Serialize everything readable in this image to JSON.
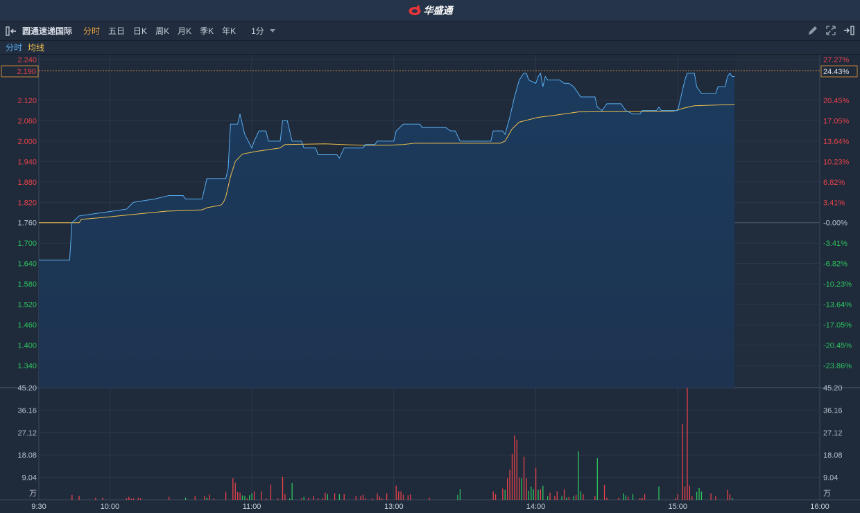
{
  "app": {
    "brand": "华盛通",
    "brand_color": "#e8343a"
  },
  "toolbar": {
    "stock_name": "圆通速递国际",
    "tabs": [
      {
        "label": "分时",
        "active": true
      },
      {
        "label": "五日"
      },
      {
        "label": "日K"
      },
      {
        "label": "周K"
      },
      {
        "label": "月K"
      },
      {
        "label": "季K"
      },
      {
        "label": "年K"
      }
    ],
    "period": "1分",
    "icons": [
      "collapse-left-icon",
      "pencil-icon",
      "fullscreen-icon",
      "expand-right-icon"
    ]
  },
  "legend": {
    "price_label": "分时",
    "avg_label": "均线",
    "price_color": "#5aaef0",
    "avg_color": "#f3c14b"
  },
  "colors": {
    "up": "#e8434a",
    "down": "#2ec55e",
    "flat": "#b8c0cc"
  },
  "chart_data": {
    "type": "line",
    "prev_close": 1.76,
    "current_price": "2.190",
    "current_change": "24.43%",
    "ylim": [
      1.34,
      2.24
    ],
    "y_ticks_left": [
      "2.240",
      "2.120",
      "2.060",
      "2.000",
      "1.940",
      "1.880",
      "1.820",
      "1.760",
      "1.700",
      "1.640",
      "1.580",
      "1.520",
      "1.460",
      "1.400",
      "1.340"
    ],
    "y_ticks_right": [
      "27.27%",
      "20.45%",
      "17.05%",
      "13.64%",
      "10.23%",
      "6.82%",
      "3.41%",
      "-0.00%",
      "-3.41%",
      "-6.82%",
      "-10.23%",
      "-13.64%",
      "-17.05%",
      "-20.45%",
      "-23.86%"
    ],
    "x_ticks": [
      "9:30",
      "10:00",
      "11:00",
      "13:00",
      "14:00",
      "15:00",
      "16:00"
    ],
    "sessions": [
      [
        "9:30",
        "12:00"
      ],
      [
        "13:00",
        "16:00"
      ]
    ],
    "price": [
      [
        "9:30",
        1.65
      ],
      [
        "9:43",
        1.65
      ],
      [
        "9:44",
        1.76
      ],
      [
        "9:47",
        1.78
      ],
      [
        "9:57",
        1.79
      ],
      [
        "10:07",
        1.8
      ],
      [
        "10:10",
        1.82
      ],
      [
        "10:19",
        1.83
      ],
      [
        "10:25",
        1.84
      ],
      [
        "10:31",
        1.84
      ],
      [
        "10:32",
        1.83
      ],
      [
        "10:39",
        1.83
      ],
      [
        "10:41",
        1.89
      ],
      [
        "10:49",
        1.89
      ],
      [
        "10:50",
        1.92
      ],
      [
        "10:51",
        2.05
      ],
      [
        "10:54",
        2.05
      ],
      [
        "10:55",
        2.08
      ],
      [
        "10:57",
        2.02
      ],
      [
        "11:00",
        1.98
      ],
      [
        "11:01",
        2.0
      ],
      [
        "11:03",
        2.03
      ],
      [
        "11:06",
        2.03
      ],
      [
        "11:07",
        2.0
      ],
      [
        "11:12",
        2.0
      ],
      [
        "11:13",
        2.06
      ],
      [
        "11:15",
        2.06
      ],
      [
        "11:17",
        2.0
      ],
      [
        "11:21",
        2.0
      ],
      [
        "11:22",
        1.98
      ],
      [
        "11:27",
        1.98
      ],
      [
        "11:28",
        1.96
      ],
      [
        "11:36",
        1.96
      ],
      [
        "11:37",
        1.95
      ],
      [
        "11:39",
        1.98
      ],
      [
        "11:47",
        1.98
      ],
      [
        "11:48",
        1.99
      ],
      [
        "11:52",
        1.99
      ],
      [
        "11:53",
        2.0
      ],
      [
        "13:00",
        2.0
      ],
      [
        "13:01",
        2.03
      ],
      [
        "13:04",
        2.05
      ],
      [
        "13:11",
        2.05
      ],
      [
        "13:12",
        2.04
      ],
      [
        "13:22",
        2.04
      ],
      [
        "13:24",
        2.03
      ],
      [
        "13:26",
        2.03
      ],
      [
        "13:28",
        2.0
      ],
      [
        "13:41",
        2.0
      ],
      [
        "13:42",
        2.03
      ],
      [
        "13:46",
        2.03
      ],
      [
        "13:47",
        2.02
      ],
      [
        "13:49",
        2.07
      ],
      [
        "13:51",
        2.13
      ],
      [
        "13:53",
        2.18
      ],
      [
        "13:55",
        2.2
      ],
      [
        "13:56",
        2.2
      ],
      [
        "13:57",
        2.18
      ],
      [
        "14:00",
        2.17
      ],
      [
        "14:01",
        2.19
      ],
      [
        "14:02",
        2.2
      ],
      [
        "14:03",
        2.16
      ],
      [
        "14:04",
        2.19
      ],
      [
        "14:05",
        2.18
      ],
      [
        "14:10",
        2.18
      ],
      [
        "14:12",
        2.17
      ],
      [
        "14:14",
        2.17
      ],
      [
        "14:16",
        2.16
      ],
      [
        "14:19",
        2.13
      ],
      [
        "14:25",
        2.13
      ],
      [
        "14:26",
        2.1
      ],
      [
        "14:28",
        2.09
      ],
      [
        "14:30",
        2.11
      ],
      [
        "14:36",
        2.11
      ],
      [
        "14:38",
        2.09
      ],
      [
        "14:41",
        2.08
      ],
      [
        "14:44",
        2.08
      ],
      [
        "14:45",
        2.09
      ],
      [
        "14:51",
        2.09
      ],
      [
        "14:52",
        2.1
      ],
      [
        "14:53",
        2.09
      ],
      [
        "15:00",
        2.09
      ],
      [
        "15:01",
        2.12
      ],
      [
        "15:03",
        2.18
      ],
      [
        "15:04",
        2.2
      ],
      [
        "15:07",
        2.2
      ],
      [
        "15:08",
        2.16
      ],
      [
        "15:10",
        2.14
      ],
      [
        "15:16",
        2.14
      ],
      [
        "15:17",
        2.16
      ],
      [
        "15:20",
        2.16
      ],
      [
        "15:21",
        2.19
      ],
      [
        "15:22",
        2.2
      ],
      [
        "15:23",
        2.19
      ],
      [
        "15:24",
        2.19
      ]
    ],
    "average": [
      [
        "9:30",
        1.76
      ],
      [
        "9:47",
        1.76
      ],
      [
        "9:48",
        1.77
      ],
      [
        "9:58",
        1.776
      ],
      [
        "10:09",
        1.784
      ],
      [
        "10:24",
        1.794
      ],
      [
        "10:39",
        1.798
      ],
      [
        "10:41",
        1.804
      ],
      [
        "10:47",
        1.812
      ],
      [
        "10:48",
        1.82
      ],
      [
        "10:49",
        1.836
      ],
      [
        "10:51",
        1.896
      ],
      [
        "10:53",
        1.94
      ],
      [
        "10:56",
        1.962
      ],
      [
        "11:02",
        1.97
      ],
      [
        "11:08",
        1.976
      ],
      [
        "11:12",
        1.98
      ],
      [
        "11:14",
        1.99
      ],
      [
        "11:31",
        1.992
      ],
      [
        "11:46",
        1.988
      ],
      [
        "11:58",
        1.988
      ],
      [
        "13:04",
        1.99
      ],
      [
        "13:09",
        1.994
      ],
      [
        "13:45",
        1.994
      ],
      [
        "13:47",
        2.0
      ],
      [
        "13:50",
        2.036
      ],
      [
        "13:53",
        2.056
      ],
      [
        "14:01",
        2.07
      ],
      [
        "14:08",
        2.076
      ],
      [
        "14:18",
        2.086
      ],
      [
        "14:58",
        2.088
      ],
      [
        "15:03",
        2.098
      ],
      [
        "15:07",
        2.104
      ],
      [
        "15:24",
        2.108
      ]
    ],
    "volume_unit": "万",
    "volume_ylim": [
      0,
      45.2
    ],
    "volume_ticks": [
      "45.20",
      "36.16",
      "27.12",
      "18.08",
      "9.04"
    ],
    "volume": [
      [
        "9:44",
        2.0,
        "up"
      ],
      [
        "9:47",
        1.6,
        "up"
      ],
      [
        "9:54",
        0.9,
        "up"
      ],
      [
        "9:57",
        0.9,
        "up"
      ],
      [
        "10:07",
        0.6,
        "up"
      ],
      [
        "10:08",
        1.2,
        "up"
      ],
      [
        "10:09",
        0.6,
        "up"
      ],
      [
        "10:10",
        0.6,
        "up"
      ],
      [
        "10:12",
        0.9,
        "up"
      ],
      [
        "10:13",
        0.6,
        "up"
      ],
      [
        "10:25",
        1.2,
        "up"
      ],
      [
        "10:32",
        0.9,
        "down"
      ],
      [
        "10:36",
        1.6,
        "up"
      ],
      [
        "10:40",
        1.6,
        "up"
      ],
      [
        "10:41",
        0.9,
        "down"
      ],
      [
        "10:42",
        2.1,
        "up"
      ],
      [
        "10:44",
        0.6,
        "up"
      ],
      [
        "10:49",
        3.2,
        "up"
      ],
      [
        "10:52",
        8.7,
        "up"
      ],
      [
        "10:53",
        6.8,
        "up"
      ],
      [
        "10:54",
        3.2,
        "up"
      ],
      [
        "10:55",
        2.9,
        "up"
      ],
      [
        "10:56",
        1.8,
        "down"
      ],
      [
        "10:57",
        1.6,
        "down"
      ],
      [
        "10:58",
        0.6,
        "up"
      ],
      [
        "10:59",
        1.9,
        "down"
      ],
      [
        "11:00",
        2.7,
        "down"
      ],
      [
        "11:01",
        3.4,
        "up"
      ],
      [
        "11:04",
        3.4,
        "up"
      ],
      [
        "11:06",
        0.6,
        "up"
      ],
      [
        "11:08",
        6.2,
        "up"
      ],
      [
        "11:11",
        0.6,
        "up"
      ],
      [
        "11:13",
        9.3,
        "up"
      ],
      [
        "11:14",
        2.3,
        "up"
      ],
      [
        "11:16",
        0.6,
        "down"
      ],
      [
        "11:17",
        6.8,
        "down"
      ],
      [
        "11:21",
        0.6,
        "up"
      ],
      [
        "11:22",
        1.2,
        "down"
      ],
      [
        "11:24",
        0.9,
        "up"
      ],
      [
        "11:26",
        1.6,
        "up"
      ],
      [
        "11:28",
        0.6,
        "up"
      ],
      [
        "11:30",
        0.6,
        "up"
      ],
      [
        "11:31",
        2.9,
        "up"
      ],
      [
        "11:32",
        2.3,
        "down"
      ],
      [
        "11:35",
        2.6,
        "up"
      ],
      [
        "11:37",
        2.3,
        "down"
      ],
      [
        "11:39",
        2.3,
        "up"
      ],
      [
        "11:44",
        1.6,
        "up"
      ],
      [
        "11:46",
        1.6,
        "up"
      ],
      [
        "11:47",
        2.1,
        "up"
      ],
      [
        "11:48",
        0.6,
        "up"
      ],
      [
        "11:51",
        0.6,
        "up"
      ],
      [
        "11:53",
        2.6,
        "up"
      ],
      [
        "11:54",
        1.3,
        "up"
      ],
      [
        "11:55",
        0.6,
        "up"
      ],
      [
        "11:57",
        2.6,
        "up"
      ],
      [
        "13:01",
        5.7,
        "up"
      ],
      [
        "13:02",
        3.4,
        "up"
      ],
      [
        "13:03",
        3.4,
        "up"
      ],
      [
        "13:04",
        2.1,
        "up"
      ],
      [
        "13:06",
        1.9,
        "up"
      ],
      [
        "13:07",
        2.3,
        "up"
      ],
      [
        "13:15",
        0.9,
        "up"
      ],
      [
        "13:27",
        2.0,
        "down"
      ],
      [
        "13:28",
        4.3,
        "down"
      ],
      [
        "13:42",
        3.4,
        "up"
      ],
      [
        "13:43",
        2.3,
        "up"
      ],
      [
        "13:46",
        4.6,
        "up"
      ],
      [
        "13:47",
        4.0,
        "down"
      ],
      [
        "13:48",
        8.7,
        "up"
      ],
      [
        "13:49",
        12.1,
        "up"
      ],
      [
        "13:50",
        18.5,
        "up"
      ],
      [
        "13:51",
        26.0,
        "up"
      ],
      [
        "13:52",
        24.1,
        "up"
      ],
      [
        "13:53",
        9.0,
        "up"
      ],
      [
        "13:54",
        8.7,
        "down"
      ],
      [
        "13:55",
        17.4,
        "up"
      ],
      [
        "13:56",
        8.7,
        "up"
      ],
      [
        "13:57",
        3.7,
        "down"
      ],
      [
        "13:58",
        5.4,
        "down"
      ],
      [
        "13:59",
        4.3,
        "down"
      ],
      [
        "14:00",
        12.9,
        "up"
      ],
      [
        "14:01",
        4.0,
        "down"
      ],
      [
        "14:02",
        4.3,
        "up"
      ],
      [
        "14:03",
        5.7,
        "down"
      ],
      [
        "14:05",
        1.5,
        "down"
      ],
      [
        "14:06",
        2.9,
        "up"
      ],
      [
        "14:08",
        1.5,
        "up"
      ],
      [
        "14:09",
        3.4,
        "up"
      ],
      [
        "14:11",
        1.5,
        "down"
      ],
      [
        "14:12",
        4.3,
        "up"
      ],
      [
        "14:13",
        0.9,
        "down"
      ],
      [
        "14:14",
        1.2,
        "up"
      ],
      [
        "14:16",
        1.5,
        "down"
      ],
      [
        "14:17",
        2.0,
        "up"
      ],
      [
        "14:18",
        19.6,
        "down"
      ],
      [
        "14:19",
        3.4,
        "down"
      ],
      [
        "14:20",
        2.3,
        "up"
      ],
      [
        "14:25",
        1.5,
        "up"
      ],
      [
        "14:26",
        16.8,
        "down"
      ],
      [
        "14:29",
        6.0,
        "up"
      ],
      [
        "14:30",
        0.9,
        "up"
      ],
      [
        "14:35",
        0.9,
        "up"
      ],
      [
        "14:37",
        2.6,
        "down"
      ],
      [
        "14:38",
        1.8,
        "down"
      ],
      [
        "14:39",
        1.2,
        "up"
      ],
      [
        "14:41",
        2.3,
        "down"
      ],
      [
        "14:44",
        0.7,
        "up"
      ],
      [
        "14:45",
        0.7,
        "up"
      ],
      [
        "14:46",
        2.3,
        "up"
      ],
      [
        "14:52",
        5.4,
        "down"
      ],
      [
        "14:59",
        0.7,
        "up"
      ],
      [
        "15:00",
        2.3,
        "up"
      ],
      [
        "15:02",
        30.5,
        "up"
      ],
      [
        "15:03",
        5.4,
        "up"
      ],
      [
        "15:04",
        45.2,
        "up"
      ],
      [
        "15:05",
        5.7,
        "up"
      ],
      [
        "15:06",
        1.5,
        "up"
      ],
      [
        "15:08",
        3.2,
        "down"
      ],
      [
        "15:09",
        4.8,
        "down"
      ],
      [
        "15:10",
        3.4,
        "down"
      ],
      [
        "15:14",
        2.6,
        "up"
      ],
      [
        "15:16",
        1.5,
        "up"
      ],
      [
        "15:21",
        4.0,
        "up"
      ],
      [
        "15:22",
        2.3,
        "up"
      ],
      [
        "15:23",
        0.7,
        "down"
      ]
    ]
  }
}
